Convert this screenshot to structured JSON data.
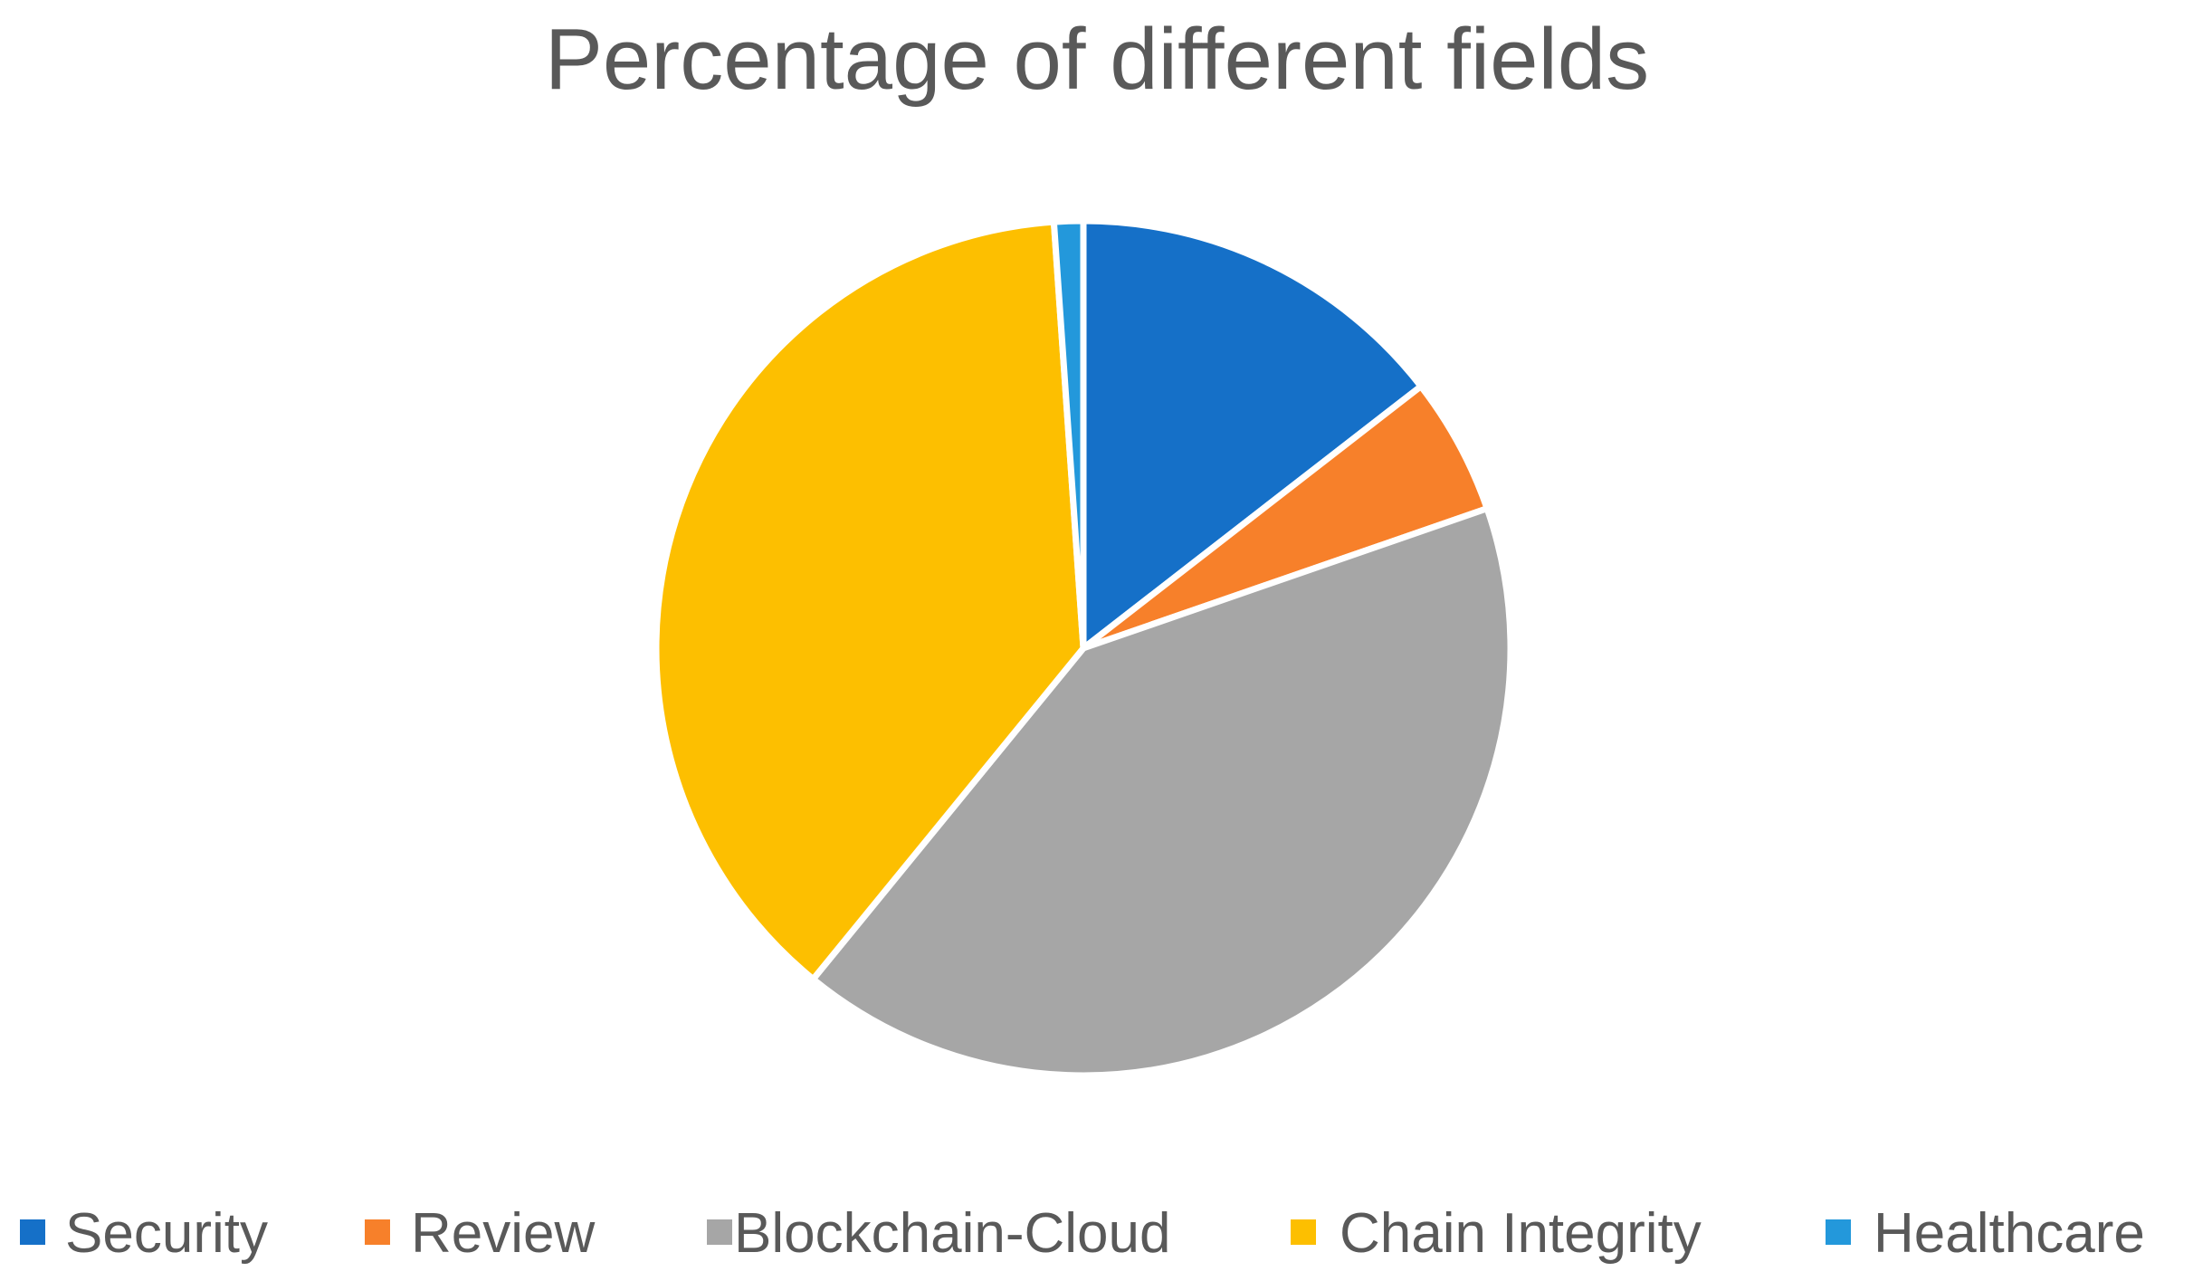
{
  "chart_data": {
    "type": "pie",
    "title": "Percentage of different fields",
    "categories": [
      "Security",
      "Review",
      "Blockchain-Cloud",
      "Chain Integrity",
      "Healthcare"
    ],
    "values": [
      14.5,
      5.2,
      41.2,
      38.0,
      1.1
    ],
    "unit": "%",
    "colors": [
      "#1570C8",
      "#F7802A",
      "#A6A6A6",
      "#FDBF00",
      "#2398DB"
    ],
    "start_angle_deg": 0,
    "direction": "clockwise",
    "legend_position": "bottom",
    "data_labels": false
  }
}
